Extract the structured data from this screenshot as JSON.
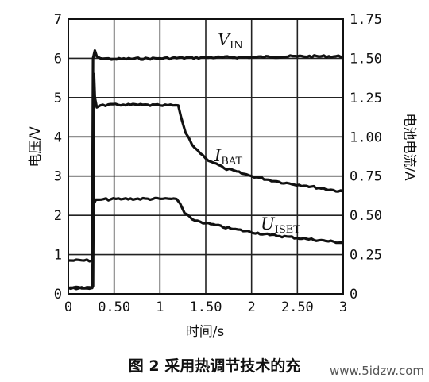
{
  "chart_data": {
    "type": "line",
    "caption": "图 2  采用热调节技术的充",
    "watermark": "www.5idzw.com",
    "xlabel": "时间/s",
    "ylabel_left": "电压/V",
    "ylabel_right": "电池电流/A",
    "xlim": [
      0,
      3
    ],
    "ylim_left": [
      0,
      7
    ],
    "ylim_right": [
      0,
      1.75
    ],
    "grid": true,
    "x_ticks": [
      "0",
      "0.50",
      "1",
      "1.50",
      "2",
      "2.50",
      "3"
    ],
    "y_ticks_left": [
      "0",
      "1",
      "2",
      "3",
      "4",
      "5",
      "6",
      "7"
    ],
    "y_ticks_right": [
      "1.75",
      "1.50",
      "1.25",
      "1.00",
      "0.75",
      "0.50",
      "0.25",
      "0"
    ],
    "series": [
      {
        "name": "VIN",
        "label_main": "V",
        "label_sub": "IN",
        "axis": "left",
        "x": [
          0,
          0.26,
          0.27,
          0.29,
          0.31,
          0.35,
          0.5,
          1.0,
          1.5,
          2.0,
          2.5,
          3.0
        ],
        "y": [
          0.85,
          0.85,
          6.0,
          6.2,
          6.05,
          6.0,
          5.98,
          6.0,
          6.02,
          6.03,
          6.05,
          6.05
        ]
      },
      {
        "name": "IBAT",
        "label_main": "I",
        "label_sub": "BAT",
        "axis": "left",
        "x": [
          0,
          0.26,
          0.27,
          0.28,
          0.29,
          0.31,
          0.35,
          0.6,
          1.0,
          1.2,
          1.23,
          1.28,
          1.35,
          1.5,
          1.7,
          2.0,
          2.3,
          2.6,
          3.0
        ],
        "y": [
          0.15,
          0.15,
          0.2,
          5.6,
          5.0,
          4.75,
          4.8,
          4.82,
          4.8,
          4.8,
          4.5,
          4.1,
          3.8,
          3.45,
          3.2,
          3.0,
          2.85,
          2.75,
          2.6
        ]
      },
      {
        "name": "UISET",
        "label_main": "U",
        "label_sub": "ISET",
        "axis": "left",
        "x": [
          0,
          0.26,
          0.28,
          0.3,
          0.33,
          0.6,
          1.0,
          1.18,
          1.22,
          1.27,
          1.35,
          1.5,
          1.8,
          2.2,
          2.6,
          3.0
        ],
        "y": [
          0.15,
          0.15,
          2.3,
          2.4,
          2.4,
          2.42,
          2.42,
          2.42,
          2.3,
          2.05,
          1.9,
          1.8,
          1.65,
          1.5,
          1.4,
          1.3
        ]
      }
    ]
  }
}
